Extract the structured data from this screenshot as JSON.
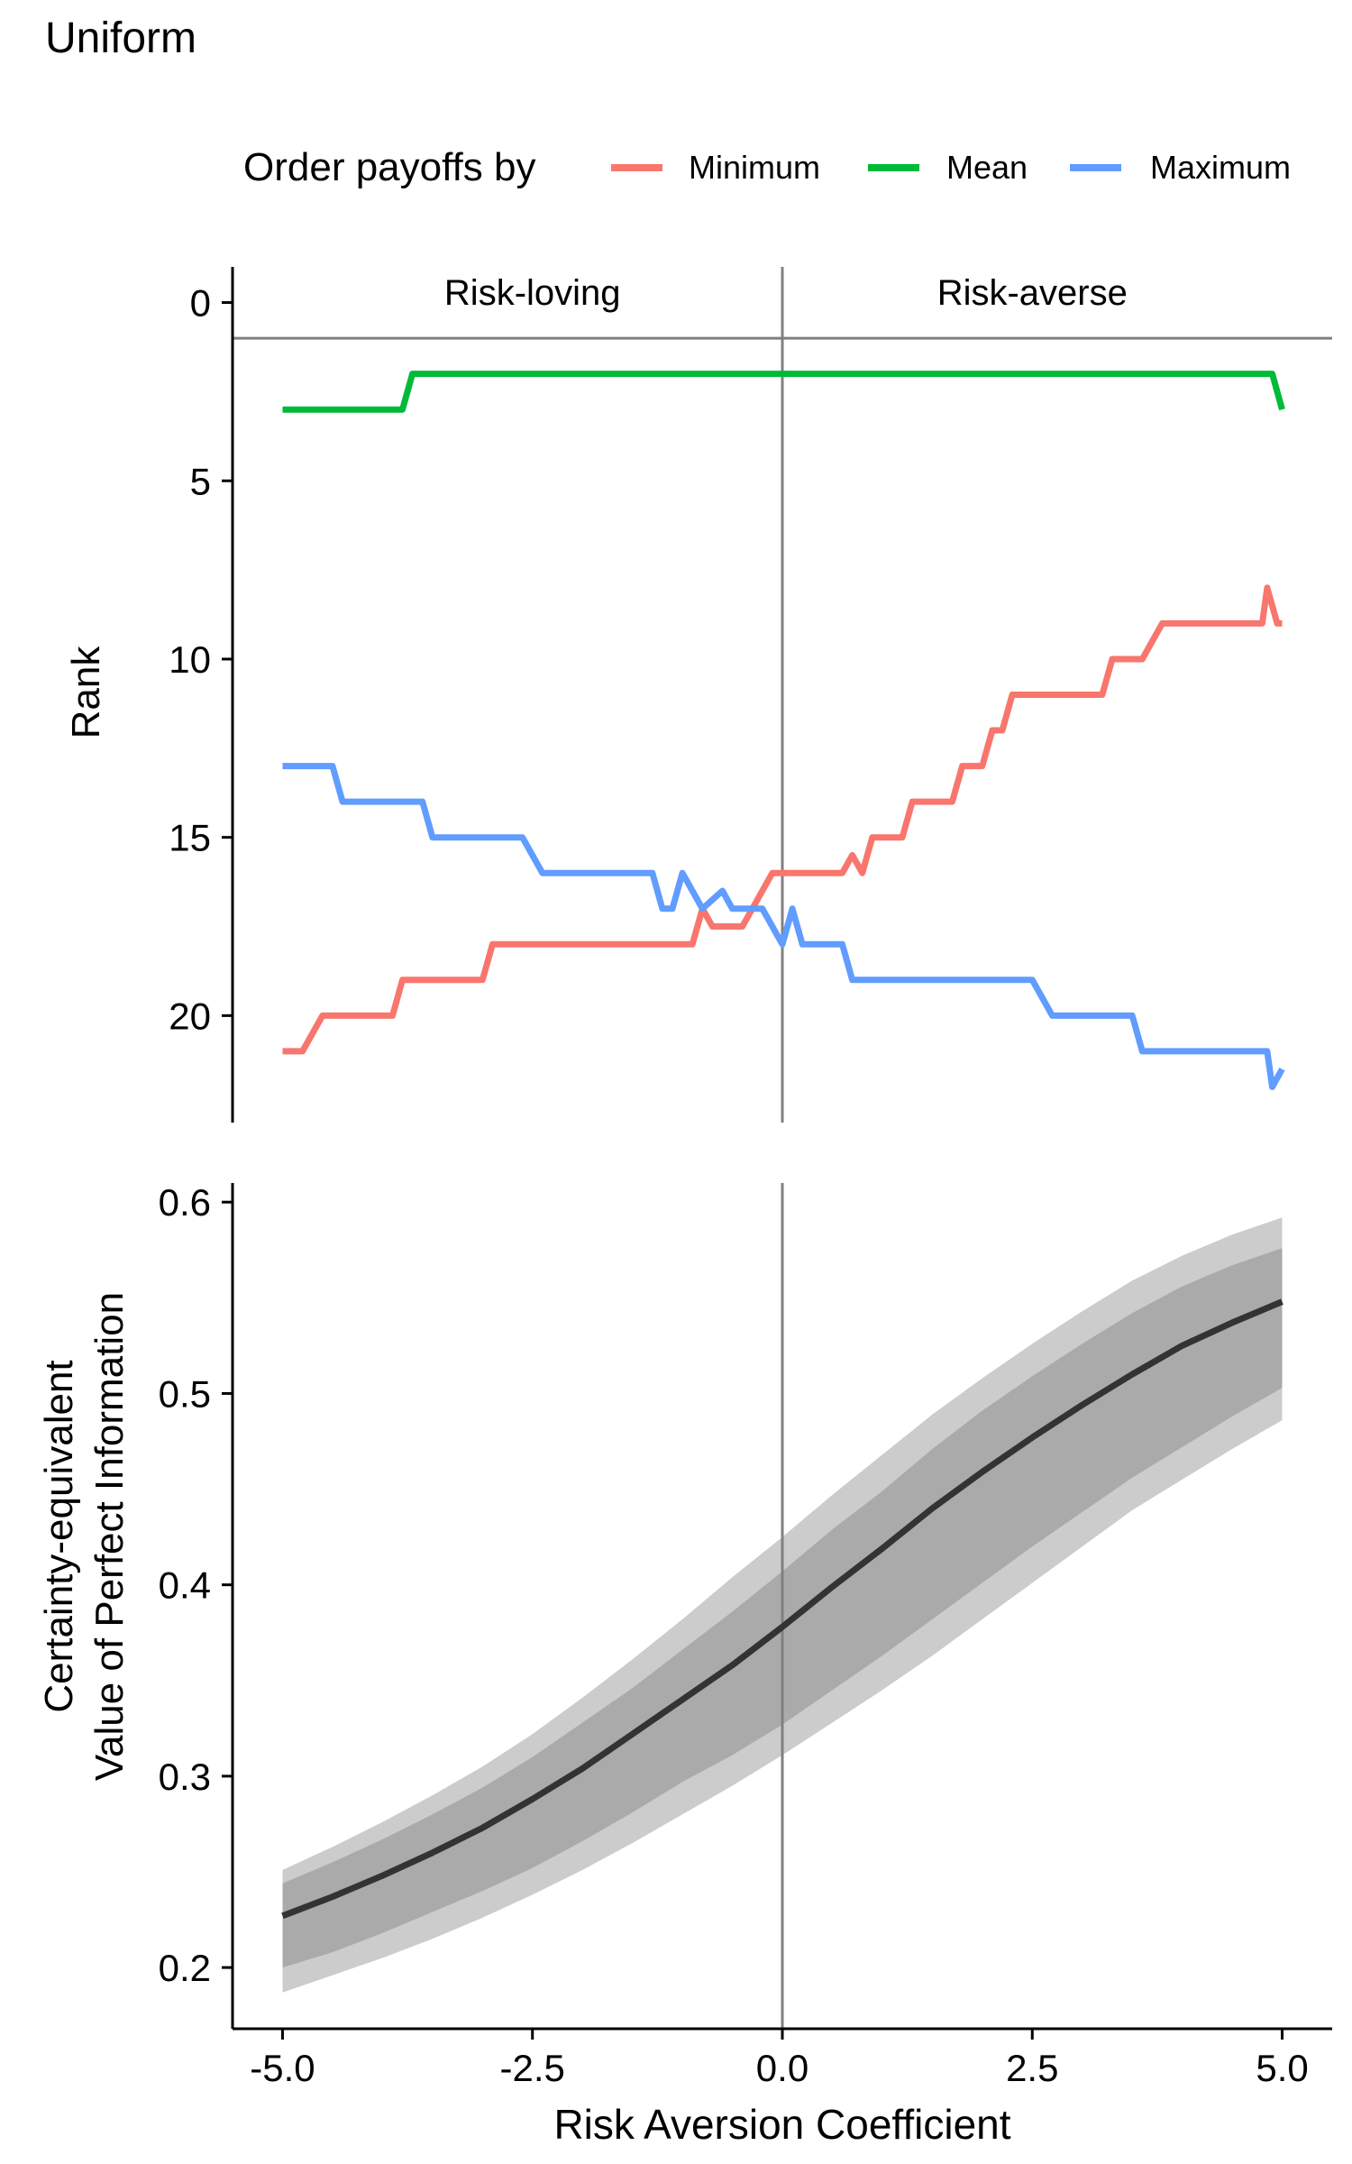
{
  "title": "Uniform",
  "legend": {
    "title": "Order payoffs by",
    "position": "top",
    "entries": [
      {
        "label": "Minimum",
        "color": "#F8766D"
      },
      {
        "label": "Mean",
        "color": "#00BA38"
      },
      {
        "label": "Maximum",
        "color": "#619CFF"
      }
    ]
  },
  "xlabel": "Risk Aversion Coefficient",
  "x_tick_labels": [
    "-5.0",
    "-2.5",
    "0.0",
    "2.5",
    "5.0"
  ],
  "colors": {
    "axis": "#000000",
    "reference_line": "#808080",
    "band_outer": "#cccccc",
    "band_inner": "#aaaaaa",
    "mean_line": "#333333"
  },
  "chart_data": [
    {
      "type": "line",
      "panel": "rank",
      "ylabel": "Rank",
      "y_reversed": true,
      "xlim": [
        -5.5,
        5.5
      ],
      "ylim": [
        -1,
        23
      ],
      "x_ticks": [
        -5,
        -2.5,
        0,
        2.5,
        5
      ],
      "y_ticks": [
        0,
        5,
        10,
        15,
        20
      ],
      "y_tick_labels": [
        "0",
        "5",
        "10",
        "15",
        "20"
      ],
      "grid": false,
      "reference_hline": 1,
      "reference_vline": 0,
      "regions": [
        {
          "label": "Risk-loving",
          "x_center": -2.5
        },
        {
          "label": "Risk-averse",
          "x_center": 2.5
        }
      ],
      "series": [
        {
          "name": "Minimum",
          "color": "#F8766D",
          "points": [
            [
              -5.0,
              21
            ],
            [
              -4.8,
              21
            ],
            [
              -4.6,
              20
            ],
            [
              -4.2,
              20
            ],
            [
              -3.9,
              20
            ],
            [
              -3.8,
              19
            ],
            [
              -3.5,
              19
            ],
            [
              -3.0,
              19
            ],
            [
              -2.9,
              18
            ],
            [
              -2.5,
              18
            ],
            [
              -2.0,
              18
            ],
            [
              -1.5,
              18
            ],
            [
              -1.1,
              18
            ],
            [
              -0.9,
              18
            ],
            [
              -0.8,
              17
            ],
            [
              -0.7,
              17.5
            ],
            [
              -0.4,
              17.5
            ],
            [
              -0.3,
              17
            ],
            [
              -0.1,
              16
            ],
            [
              0.3,
              16
            ],
            [
              0.6,
              16
            ],
            [
              0.7,
              15.5
            ],
            [
              0.8,
              16
            ],
            [
              0.9,
              15
            ],
            [
              1.2,
              15
            ],
            [
              1.3,
              14
            ],
            [
              1.7,
              14
            ],
            [
              1.8,
              13
            ],
            [
              2.0,
              13
            ],
            [
              2.1,
              12
            ],
            [
              2.2,
              12
            ],
            [
              2.3,
              11
            ],
            [
              2.8,
              11
            ],
            [
              3.2,
              11
            ],
            [
              3.3,
              10
            ],
            [
              3.6,
              10
            ],
            [
              3.8,
              9
            ],
            [
              4.4,
              9
            ],
            [
              4.8,
              9
            ],
            [
              4.85,
              8
            ],
            [
              4.95,
              9
            ],
            [
              5.0,
              9
            ]
          ]
        },
        {
          "name": "Mean",
          "color": "#00BA38",
          "points": [
            [
              -5.0,
              3
            ],
            [
              -3.8,
              3
            ],
            [
              -3.7,
              2
            ],
            [
              0,
              2
            ],
            [
              4.9,
              2
            ],
            [
              5.0,
              3
            ]
          ]
        },
        {
          "name": "Maximum",
          "color": "#619CFF",
          "points": [
            [
              -5.0,
              13
            ],
            [
              -4.5,
              13
            ],
            [
              -4.4,
              14
            ],
            [
              -4.0,
              14
            ],
            [
              -3.6,
              14
            ],
            [
              -3.5,
              15
            ],
            [
              -3.0,
              15
            ],
            [
              -2.6,
              15
            ],
            [
              -2.4,
              16
            ],
            [
              -2.0,
              16
            ],
            [
              -1.3,
              16
            ],
            [
              -1.2,
              17
            ],
            [
              -1.1,
              17
            ],
            [
              -1.0,
              16
            ],
            [
              -0.8,
              17
            ],
            [
              -0.6,
              16.5
            ],
            [
              -0.5,
              17
            ],
            [
              -0.2,
              17
            ],
            [
              0.0,
              18
            ],
            [
              0.1,
              17
            ],
            [
              0.2,
              18
            ],
            [
              0.6,
              18
            ],
            [
              0.7,
              19
            ],
            [
              1.0,
              19
            ],
            [
              2.5,
              19
            ],
            [
              2.7,
              20
            ],
            [
              3.5,
              20
            ],
            [
              3.6,
              21
            ],
            [
              4.0,
              21
            ],
            [
              4.85,
              21
            ],
            [
              4.9,
              22
            ],
            [
              5.0,
              21.5
            ]
          ]
        }
      ]
    },
    {
      "type": "area",
      "panel": "value",
      "ylabel": "Certainty-equivalent\nValue of Perfect Information",
      "ylabel_lines": [
        "Certainty-equivalent",
        "Value of Perfect Information"
      ],
      "xlim": [
        -5.5,
        5.5
      ],
      "ylim": [
        0.168,
        0.61
      ],
      "x_ticks": [
        -5,
        -2.5,
        0,
        2.5,
        5
      ],
      "y_ticks": [
        0.2,
        0.3,
        0.4,
        0.5,
        0.6
      ],
      "y_tick_labels": [
        "0.2",
        "0.3",
        "0.4",
        "0.5",
        "0.6"
      ],
      "grid": false,
      "reference_vline": 0,
      "x": [
        -5.0,
        -4.5,
        -4.0,
        -3.5,
        -3.0,
        -2.5,
        -2.0,
        -1.5,
        -1.0,
        -0.5,
        0.0,
        0.5,
        1.0,
        1.5,
        2.0,
        2.5,
        3.0,
        3.5,
        4.0,
        4.5,
        5.0
      ],
      "mean": [
        0.227,
        0.237,
        0.248,
        0.26,
        0.273,
        0.288,
        0.304,
        0.322,
        0.34,
        0.358,
        0.378,
        0.399,
        0.419,
        0.44,
        0.459,
        0.477,
        0.494,
        0.51,
        0.525,
        0.537,
        0.548
      ],
      "inner_band": {
        "lower": [
          0.2,
          0.208,
          0.218,
          0.229,
          0.24,
          0.252,
          0.266,
          0.281,
          0.297,
          0.311,
          0.327,
          0.345,
          0.363,
          0.382,
          0.401,
          0.42,
          0.438,
          0.456,
          0.472,
          0.488,
          0.503
        ],
        "upper": [
          0.244,
          0.255,
          0.267,
          0.28,
          0.294,
          0.31,
          0.328,
          0.346,
          0.366,
          0.386,
          0.407,
          0.429,
          0.449,
          0.471,
          0.491,
          0.509,
          0.526,
          0.542,
          0.556,
          0.567,
          0.576
        ]
      },
      "outer_band": {
        "lower": [
          0.187,
          0.196,
          0.205,
          0.215,
          0.226,
          0.238,
          0.251,
          0.265,
          0.28,
          0.295,
          0.311,
          0.328,
          0.345,
          0.363,
          0.382,
          0.401,
          0.42,
          0.439,
          0.455,
          0.471,
          0.486
        ],
        "upper": [
          0.251,
          0.263,
          0.276,
          0.29,
          0.305,
          0.322,
          0.341,
          0.361,
          0.382,
          0.404,
          0.425,
          0.447,
          0.468,
          0.489,
          0.508,
          0.526,
          0.543,
          0.559,
          0.572,
          0.583,
          0.592
        ]
      }
    }
  ]
}
